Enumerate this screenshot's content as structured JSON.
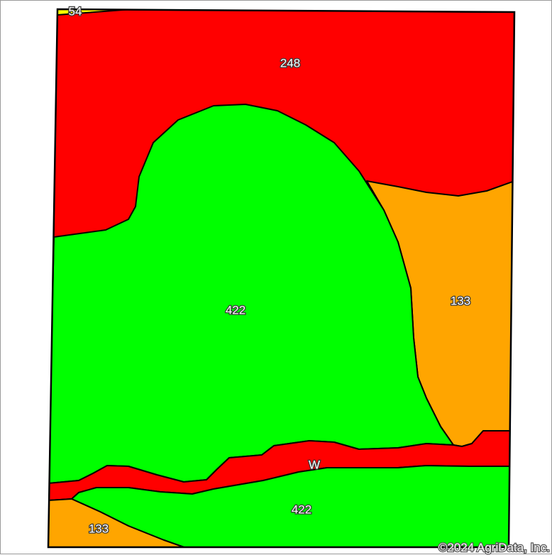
{
  "map": {
    "unit_colors": {
      "54": "#ffff00",
      "248": "#ff0000",
      "422": "#00ff00",
      "133": "#ffa500",
      "W": "#ff0000"
    },
    "labels": {
      "unit_54": "54",
      "unit_248": "248",
      "unit_422_main": "422",
      "unit_133_right": "133",
      "unit_w": "W",
      "unit_422_bottom": "422",
      "unit_133_bottom": "133"
    },
    "copyright": "©2024 AgriData, Inc."
  }
}
